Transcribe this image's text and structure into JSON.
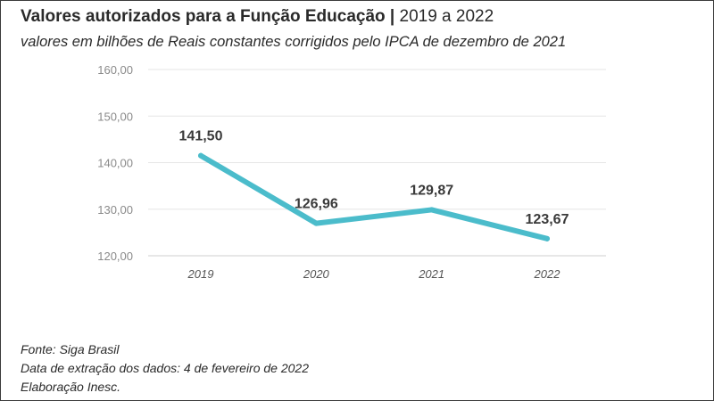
{
  "title": {
    "bold": "Valores autorizados para a Função Educação |",
    "light": "2019 a 2022"
  },
  "subtitle": "valores em bilhões de Reais constantes corrigidos pelo IPCA de dezembro de 2021",
  "chart_data": {
    "type": "line",
    "categories": [
      "2019",
      "2020",
      "2021",
      "2022"
    ],
    "values": [
      141.5,
      126.96,
      129.87,
      123.67
    ],
    "data_labels": [
      "141,50",
      "126,96",
      "129,87",
      "123,67"
    ],
    "y_ticks": [
      "120,00",
      "130,00",
      "140,00",
      "150,00",
      "160,00"
    ],
    "ylim": [
      120,
      160
    ],
    "grid": true,
    "line_color": "#4BBCCB",
    "grid_color": "#e6e6e6"
  },
  "footer": {
    "source": "Fonte: Siga Brasil",
    "extraction": "Data de extração dos dados: 4 de fevereiro de 2022",
    "credit": "Elaboração Inesc."
  }
}
